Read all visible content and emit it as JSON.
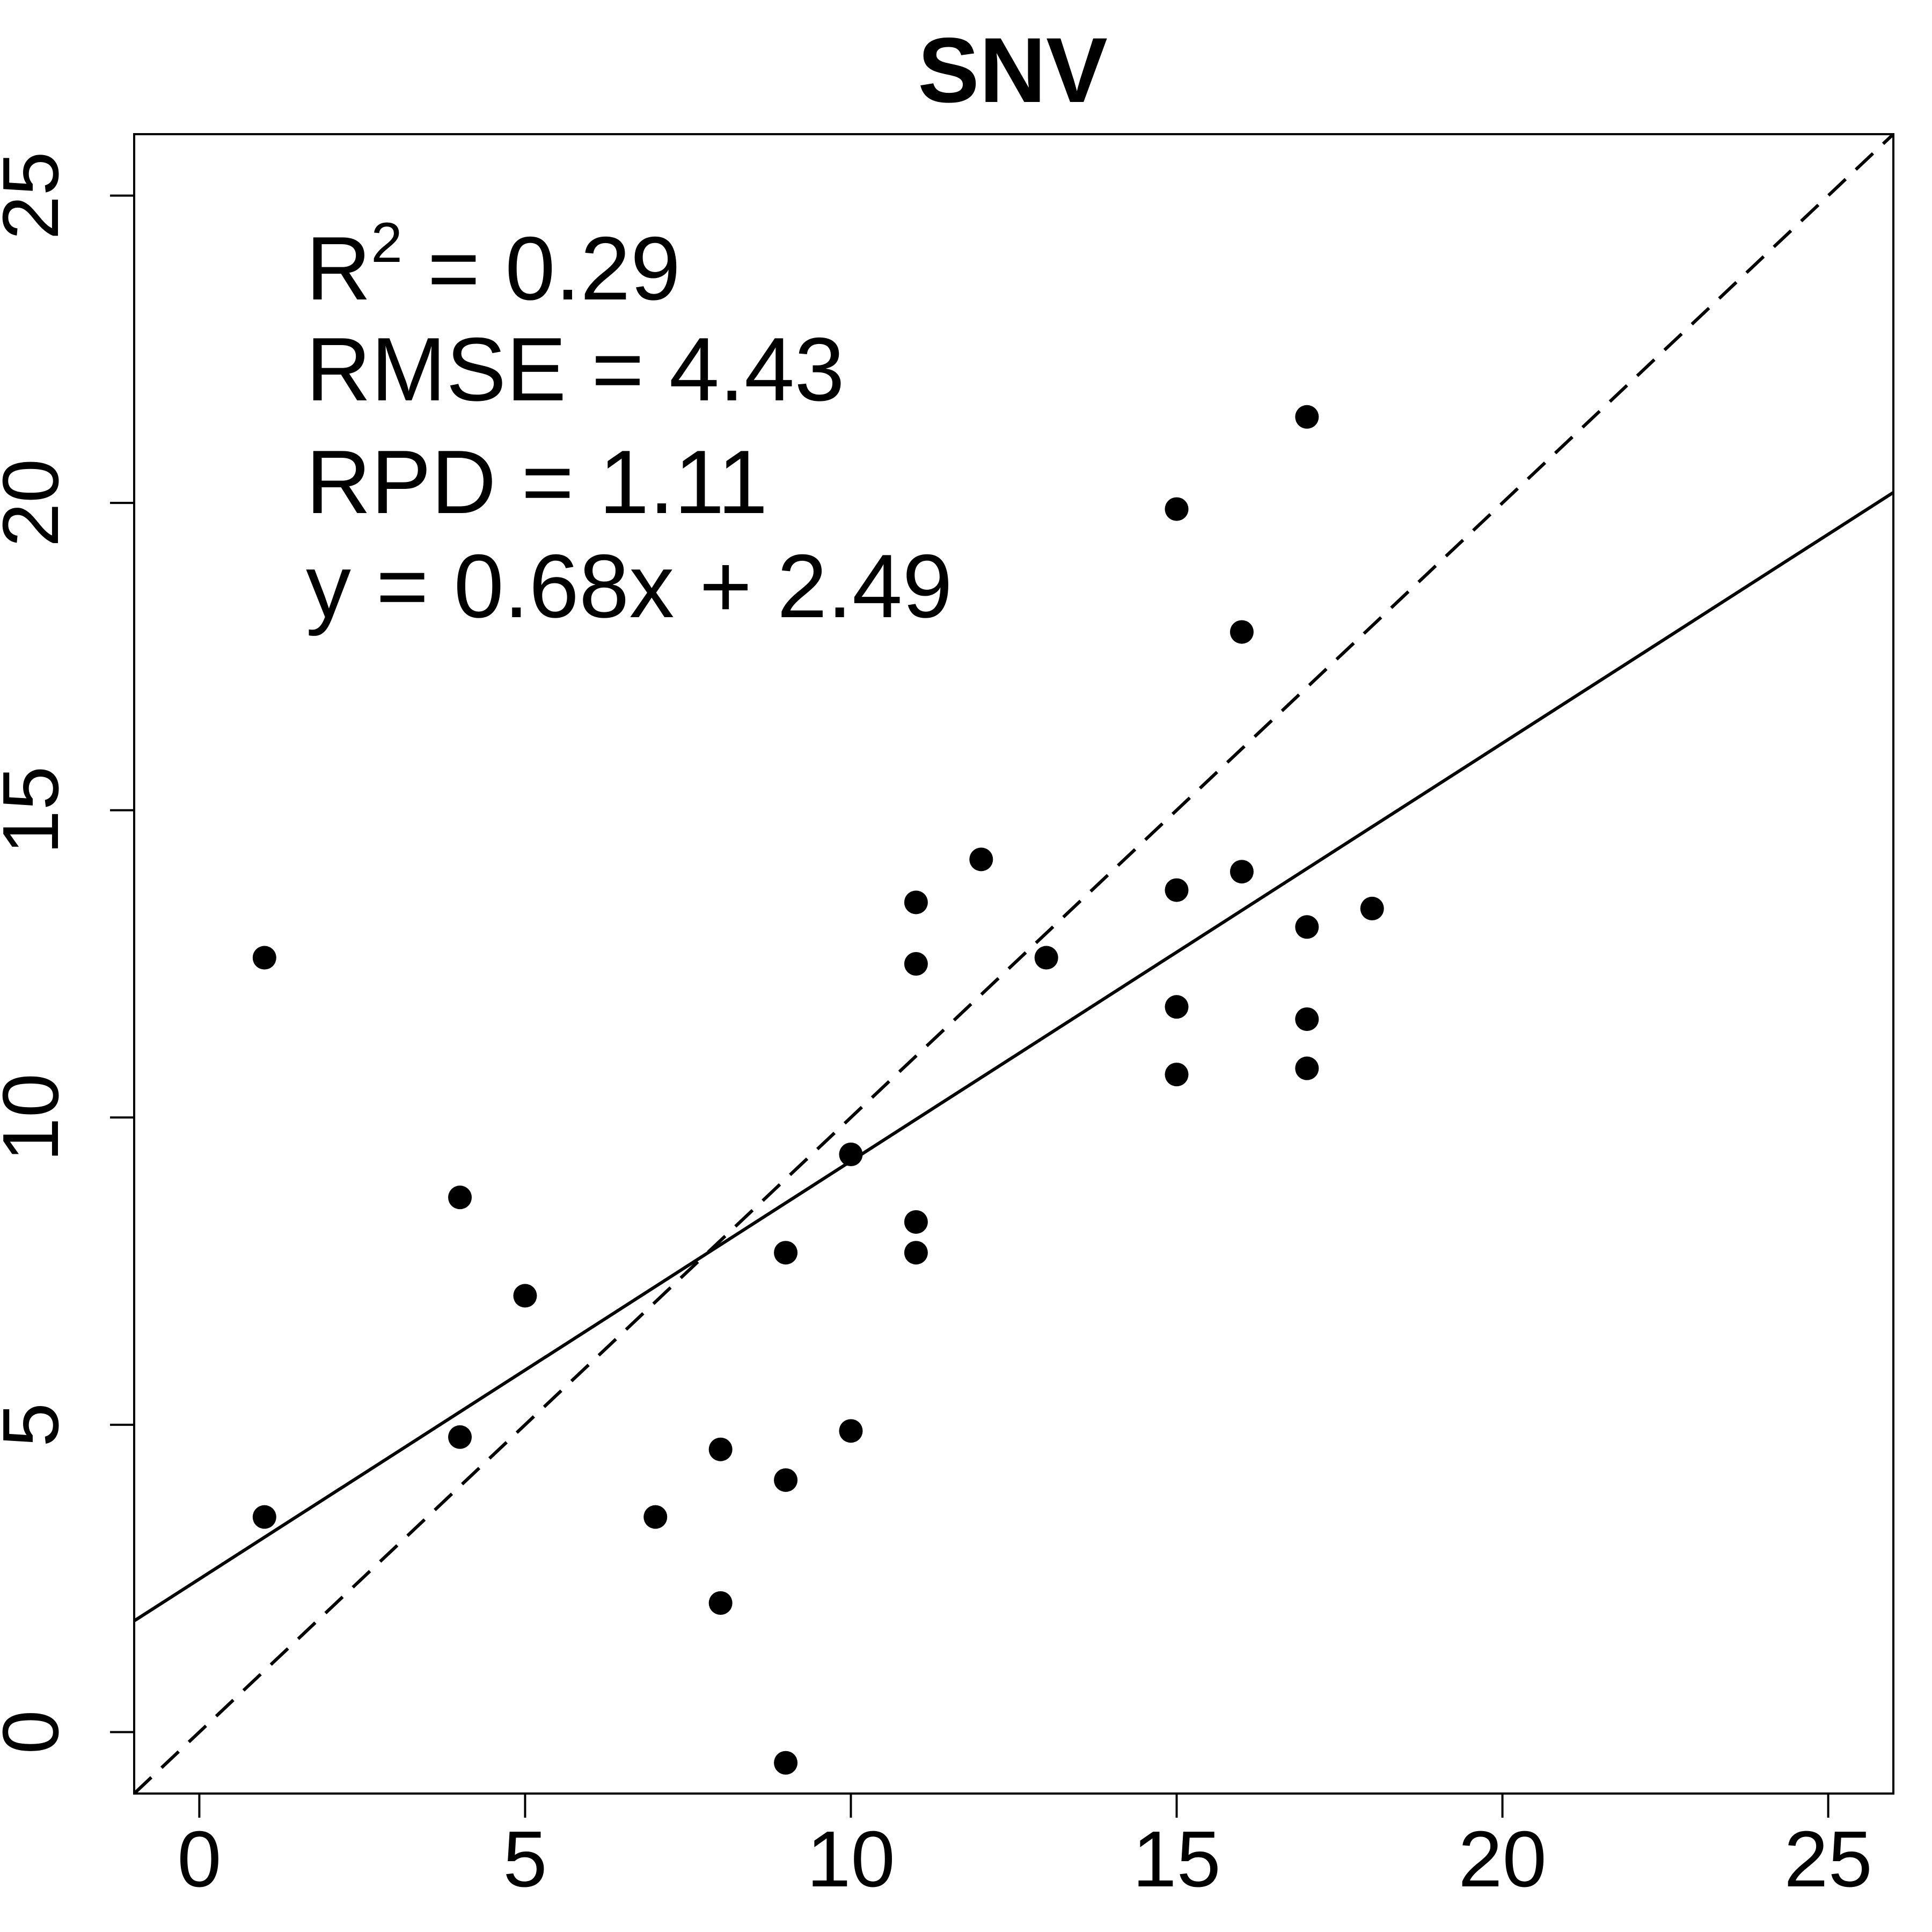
{
  "chart_data": {
    "type": "scatter",
    "title": "SNV",
    "xlabel": "",
    "ylabel": "",
    "xlim": [
      -1,
      26
    ],
    "ylim": [
      -1,
      26
    ],
    "x_ticks": [
      "0",
      "5",
      "10",
      "15",
      "20",
      "25"
    ],
    "y_ticks": [
      "0",
      "5",
      "10",
      "15",
      "20",
      "25"
    ],
    "grid": false,
    "points": [
      [
        1,
        12.6
      ],
      [
        1,
        3.5
      ],
      [
        4,
        8.7
      ],
      [
        4,
        4.8
      ],
      [
        5,
        7.1
      ],
      [
        7,
        3.5
      ],
      [
        8,
        4.6
      ],
      [
        8,
        2.1
      ],
      [
        9,
        7.8
      ],
      [
        9,
        4.1
      ],
      [
        9,
        -0.5
      ],
      [
        10,
        9.4
      ],
      [
        10,
        4.9
      ],
      [
        11,
        13.5
      ],
      [
        11,
        12.5
      ],
      [
        11,
        8.3
      ],
      [
        11,
        7.8
      ],
      [
        12,
        14.2
      ],
      [
        13,
        12.6
      ],
      [
        15,
        19.9
      ],
      [
        15,
        13.7
      ],
      [
        15,
        11.8
      ],
      [
        15,
        10.7
      ],
      [
        16,
        17.9
      ],
      [
        16,
        14.0
      ],
      [
        17,
        21.4
      ],
      [
        17,
        13.1
      ],
      [
        17,
        11.6
      ],
      [
        17,
        10.8
      ],
      [
        18,
        13.4
      ]
    ],
    "fit_line": {
      "slope": 0.68,
      "intercept": 2.49,
      "style": "solid"
    },
    "reference_line": {
      "slope": 1,
      "intercept": 0,
      "style": "dashed"
    },
    "annotations": {
      "r2_label": "R",
      "r2_sup": "2",
      "r2_value": " = 0.29",
      "rmse": "RMSE = 4.43",
      "rpd": "RPD = 1.11",
      "equation": "y = 0.68x + 2.49"
    }
  }
}
